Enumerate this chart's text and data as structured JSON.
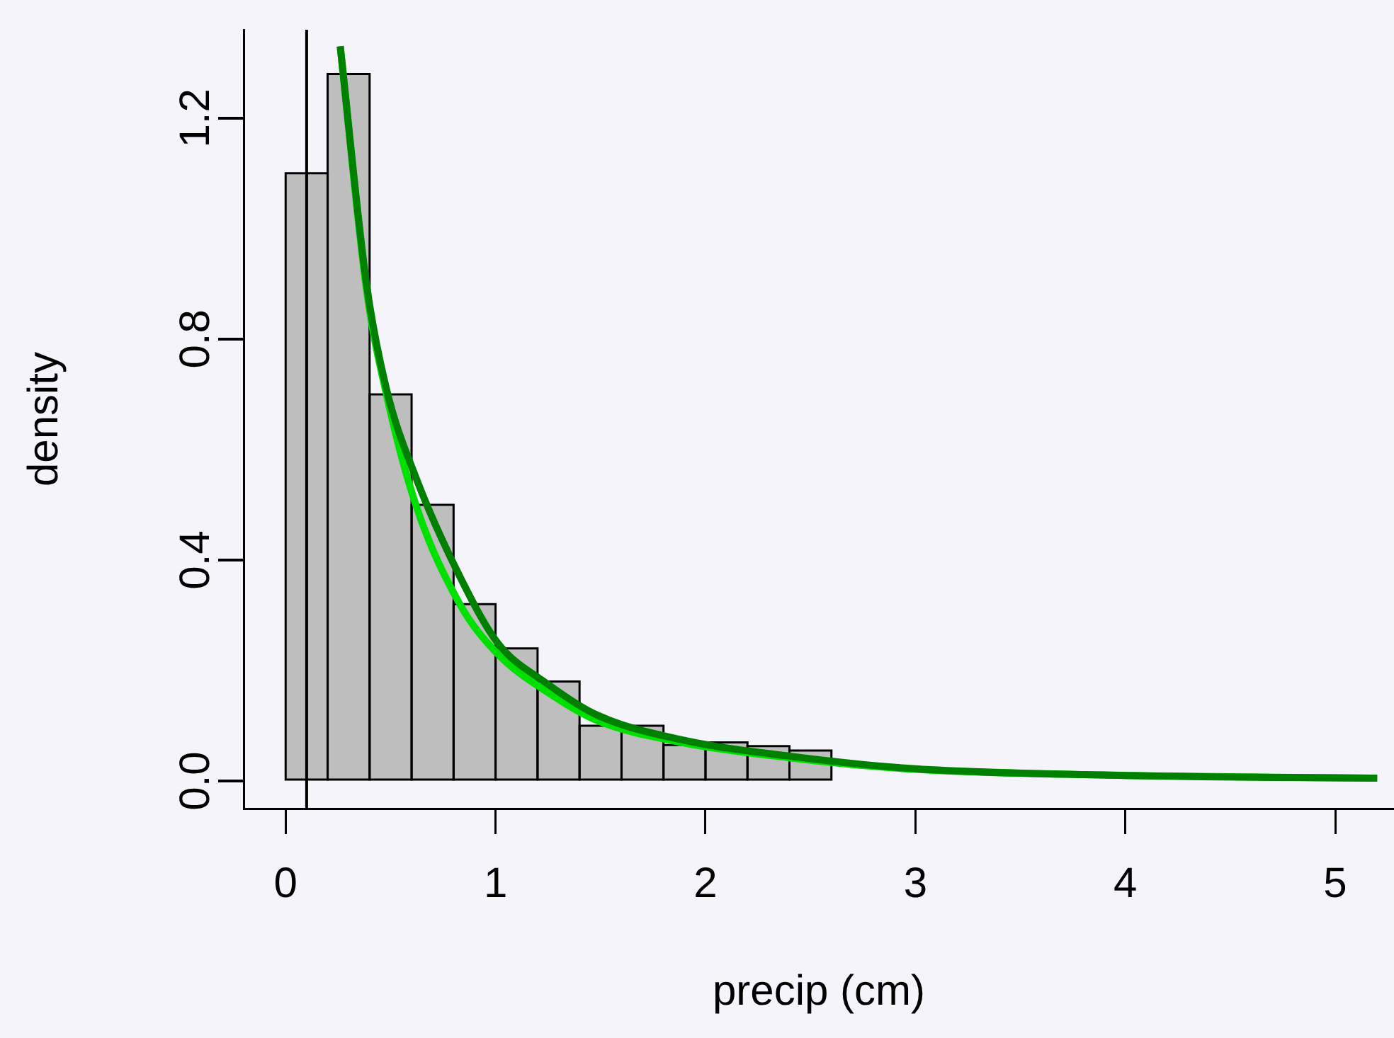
{
  "chart_data": {
    "type": "histogram",
    "xlabel": "precip (cm)",
    "ylabel": "density",
    "bins": [
      0,
      0.2,
      0.4,
      0.6,
      0.8,
      1.0,
      1.2,
      1.4,
      1.6,
      1.8,
      2.0,
      2.2,
      2.4,
      2.6,
      2.8,
      3.0,
      3.2,
      3.4,
      3.6,
      3.8,
      4.0,
      4.2,
      4.4,
      4.6,
      4.8,
      5.0,
      5.2
    ],
    "values": [
      1.1,
      1.28,
      0.7,
      0.5,
      0.32,
      0.24,
      0.18,
      0.1,
      0.1,
      0.065,
      0.07,
      0.063,
      0.055,
      null,
      null,
      null,
      null,
      null,
      null,
      null,
      null,
      null,
      null,
      null,
      null,
      null
    ],
    "color": "#bebebe",
    "series": [
      {
        "type": "line",
        "color": "#008000",
        "x": [
          0.26,
          0.385,
          0.48,
          0.62,
          0.83,
          1.01,
          1.25,
          1.48,
          1.88,
          2.4,
          3.0,
          4.0,
          5.2
        ],
        "values": [
          1.33,
          0.9,
          0.71,
          0.55,
          0.37,
          0.25,
          0.175,
          0.12,
          0.075,
          0.045,
          0.022,
          0.01,
          0.005
        ]
      },
      {
        "type": "line",
        "color": "#00e000",
        "x": [
          0.26,
          0.385,
          0.48,
          0.62,
          0.83,
          1.01,
          1.25,
          1.48,
          1.88,
          2.4,
          3.0,
          4.0,
          5.2
        ],
        "values": [
          1.33,
          0.89,
          0.7,
          0.5,
          0.32,
          0.23,
          0.16,
          0.11,
          0.07,
          0.042,
          0.021,
          0.01,
          0.005
        ]
      }
    ],
    "ref_lines": [
      {
        "axis": "x",
        "value": 0.1,
        "color": "#000000"
      }
    ],
    "xlim": [
      -0.2,
      5.28
    ],
    "ylim": [
      -0.05,
      1.36
    ],
    "xticks": [
      0,
      1,
      2,
      3,
      4,
      5
    ],
    "yticks": [
      {
        "value": 0,
        "label": "0.0"
      },
      {
        "value": 0.4,
        "label": "0.4"
      },
      {
        "value": 0.8,
        "label": "0.8"
      },
      {
        "value": 1.2,
        "label": "1.2"
      }
    ],
    "grid": false,
    "legend": false,
    "marker": "none",
    "line_style": "solid"
  }
}
